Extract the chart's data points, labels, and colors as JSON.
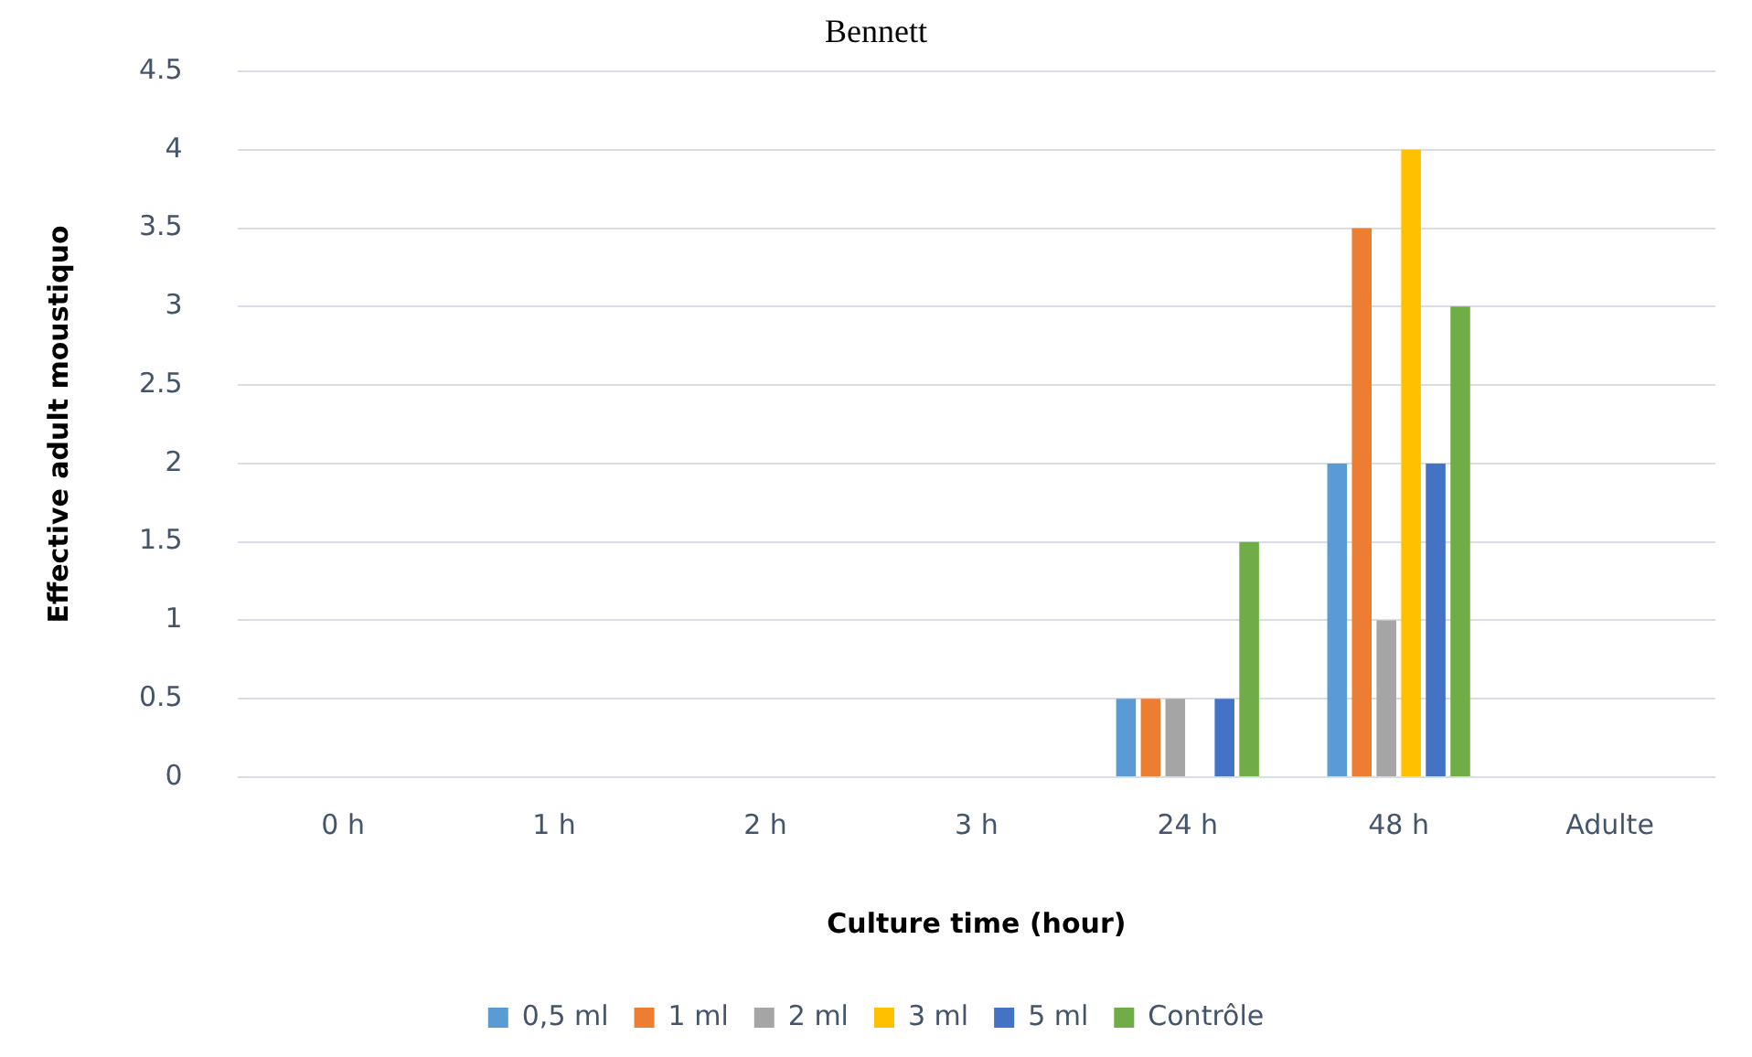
{
  "chart_data": {
    "type": "bar",
    "title": "Bennett",
    "xlabel": "Culture time (hour)",
    "ylabel": "Effective adult moustiquo",
    "categories": [
      "0 h",
      "1 h",
      "2 h",
      "3 h",
      "24 h",
      "48 h",
      "Adulte"
    ],
    "series": [
      {
        "name": "0,5 ml",
        "color": "#5b9bd5",
        "values": [
          0,
          0,
          0,
          0,
          0.5,
          2,
          0
        ]
      },
      {
        "name": "1 ml",
        "color": "#ed7d31",
        "values": [
          0,
          0,
          0,
          0,
          0.5,
          3.5,
          0
        ]
      },
      {
        "name": "2 ml",
        "color": "#a5a5a5",
        "values": [
          0,
          0,
          0,
          0,
          0.5,
          1,
          0
        ]
      },
      {
        "name": "3 ml",
        "color": "#ffc000",
        "values": [
          0,
          0,
          0,
          0,
          0,
          4,
          0
        ]
      },
      {
        "name": "5 ml",
        "color": "#4472c4",
        "values": [
          0,
          0,
          0,
          0,
          0.5,
          2,
          0
        ]
      },
      {
        "name": "Contrôle",
        "color": "#70ad47",
        "values": [
          0,
          0,
          0,
          0,
          1.5,
          3,
          0
        ]
      }
    ],
    "ylim": [
      0,
      4.5
    ],
    "yticks": [
      0,
      0.5,
      1,
      1.5,
      2,
      2.5,
      3,
      3.5,
      4,
      4.5
    ],
    "grid": "y",
    "legend": "bottom"
  }
}
